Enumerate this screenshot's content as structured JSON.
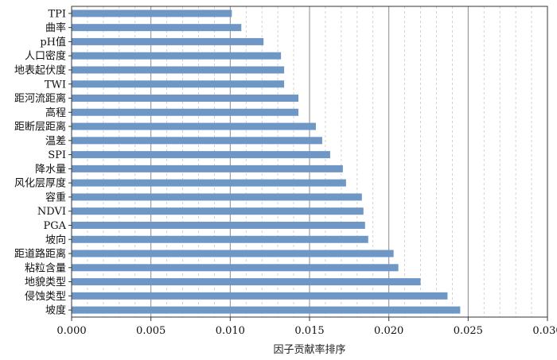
{
  "chart_data": {
    "type": "bar",
    "orientation": "horizontal",
    "title": "",
    "xlabel": "因子贡献率排序",
    "ylabel": "",
    "xlim": [
      0,
      0.03
    ],
    "x_ticks": [
      "0.000",
      "0.005",
      "0.010",
      "0.015",
      "0.020",
      "0.025",
      "0.030"
    ],
    "grid": "vertical major solid, minor dashed",
    "bar_color": "#6f97c6",
    "categories": [
      "TPI",
      "曲率",
      "pH值",
      "人口密度",
      "地表起伏度",
      "TWI",
      "距河流距离",
      "高程",
      "距断层距离",
      "温差",
      "SPI",
      "降水量",
      "风化层厚度",
      "容重",
      "NDVI",
      "PGA",
      "坡向",
      "距道路距离",
      "粘粒含量",
      "地貌类型",
      "侵蚀类型",
      "坡度"
    ],
    "values": [
      0.0101,
      0.0107,
      0.0121,
      0.0132,
      0.0134,
      0.0134,
      0.0143,
      0.0143,
      0.0154,
      0.0158,
      0.0163,
      0.0171,
      0.0173,
      0.0183,
      0.0184,
      0.0185,
      0.0187,
      0.0203,
      0.0206,
      0.022,
      0.0237,
      0.0245
    ]
  }
}
